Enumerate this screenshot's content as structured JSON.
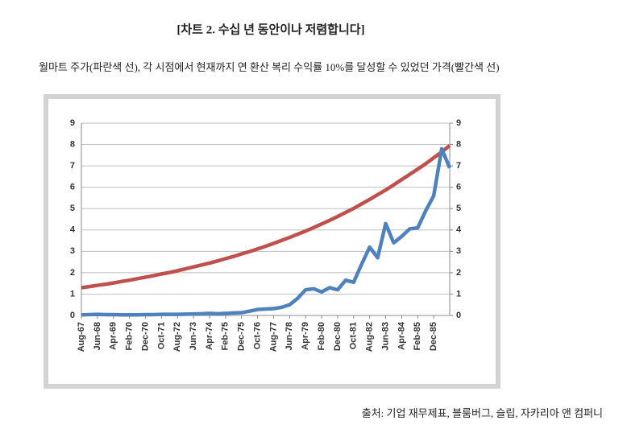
{
  "chart_data": {
    "type": "line",
    "title": "[차트 2. 수십 년 동안이나 저렴합니다]",
    "subtitle": "월마트 주가(파란색 선), 각 시점에서 현재까지 연 환산 복리 수익률 10%를 달성할 수 있었던 가격(빨간색 선)",
    "source": "출처: 기업 재무제표, 블룸버그, 슬립, 자카리아 앤 컴퍼니",
    "categories": [
      "Aug-67",
      null,
      "Jun-68",
      null,
      "Apr-69",
      null,
      "Feb-70",
      null,
      "Dec-70",
      null,
      "Oct-71",
      null,
      "Aug-72",
      null,
      "Jun-73",
      null,
      "Apr-74",
      null,
      "Feb-75",
      null,
      "Dec-75",
      null,
      "Oct-76",
      null,
      "Aug-77",
      null,
      "Jun-78",
      null,
      "Apr-79",
      null,
      "Feb-80",
      null,
      "Dec-80",
      null,
      "Oct-81",
      null,
      "Aug-82",
      null,
      "Jun-83",
      null,
      "Apr-84",
      null,
      "Feb-85",
      null,
      "Dec-85",
      null,
      null
    ],
    "series": [
      {
        "color": "#c0504d",
        "values": [
          1.3,
          1.35,
          1.41,
          1.46,
          1.52,
          1.59,
          1.65,
          1.72,
          1.79,
          1.86,
          1.94,
          2.01,
          2.09,
          2.18,
          2.27,
          2.36,
          2.45,
          2.55,
          2.66,
          2.76,
          2.88,
          2.99,
          3.11,
          3.24,
          3.37,
          3.51,
          3.65,
          3.8,
          3.95,
          4.11,
          4.28,
          4.45,
          4.63,
          4.82,
          5.01,
          5.22,
          5.43,
          5.65,
          5.87,
          6.11,
          6.36,
          6.6,
          6.85,
          7.1,
          7.38,
          7.65,
          7.95
        ]
      },
      {
        "color": "#4f81bd",
        "values": [
          0.03,
          0.04,
          0.05,
          0.04,
          0.04,
          0.03,
          0.03,
          0.03,
          0.04,
          0.04,
          0.05,
          0.05,
          0.05,
          0.06,
          0.07,
          0.08,
          0.1,
          0.08,
          0.1,
          0.12,
          0.13,
          0.2,
          0.28,
          0.3,
          0.32,
          0.38,
          0.5,
          0.8,
          1.2,
          1.25,
          1.1,
          1.3,
          1.2,
          1.65,
          1.55,
          2.4,
          3.2,
          2.7,
          4.3,
          3.4,
          3.7,
          4.05,
          4.1,
          4.9,
          5.6,
          7.8,
          6.9
        ]
      }
    ],
    "ylim": [
      0,
      9
    ],
    "yticks": [
      0,
      1,
      2,
      3,
      4,
      5,
      6,
      7,
      8,
      9
    ],
    "y2lim": [
      0,
      9
    ],
    "y2ticks": [
      0,
      1,
      2,
      3,
      4,
      5,
      6,
      7,
      8,
      9
    ],
    "grid": true
  }
}
